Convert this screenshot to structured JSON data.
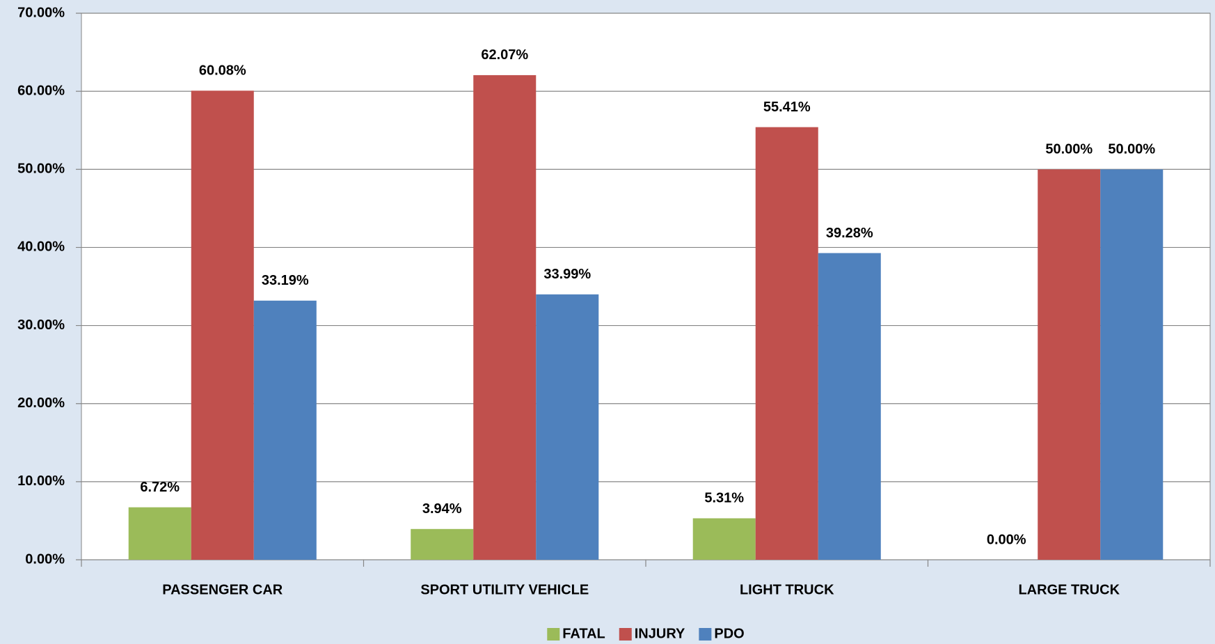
{
  "chart_data": {
    "type": "bar",
    "categories": [
      "PASSENGER CAR",
      "SPORT UTILITY VEHICLE",
      "LIGHT TRUCK",
      "LARGE TRUCK"
    ],
    "series": [
      {
        "name": "FATAL",
        "color": "#9bbb59",
        "values": [
          6.72,
          3.94,
          5.31,
          0
        ],
        "value_labels": [
          "6.72%",
          "3.94%",
          "5.31%",
          "0.00%"
        ]
      },
      {
        "name": "INJURY",
        "color": "#c0504d",
        "values": [
          60.08,
          62.07,
          55.41,
          50
        ],
        "value_labels": [
          "60.08%",
          "62.07%",
          "55.41%",
          "50.00%"
        ]
      },
      {
        "name": "PDO",
        "color": "#4f81bd",
        "values": [
          33.19,
          33.99,
          39.28,
          50
        ],
        "value_labels": [
          "33.19%",
          "33.99%",
          "39.28%",
          "50.00%"
        ]
      }
    ],
    "ylim": [
      0,
      70
    ],
    "yticks": [
      {
        "value": 0,
        "label": "0.00%"
      },
      {
        "value": 10,
        "label": "10.00%"
      },
      {
        "value": 20,
        "label": "20.00%"
      },
      {
        "value": 30,
        "label": "30.00%"
      },
      {
        "value": 40,
        "label": "40.00%"
      },
      {
        "value": 50,
        "label": "50.00%"
      },
      {
        "value": 60,
        "label": "60.00%"
      },
      {
        "value": 70,
        "label": "70.00%"
      }
    ],
    "grid": true,
    "legend": "bottom"
  }
}
